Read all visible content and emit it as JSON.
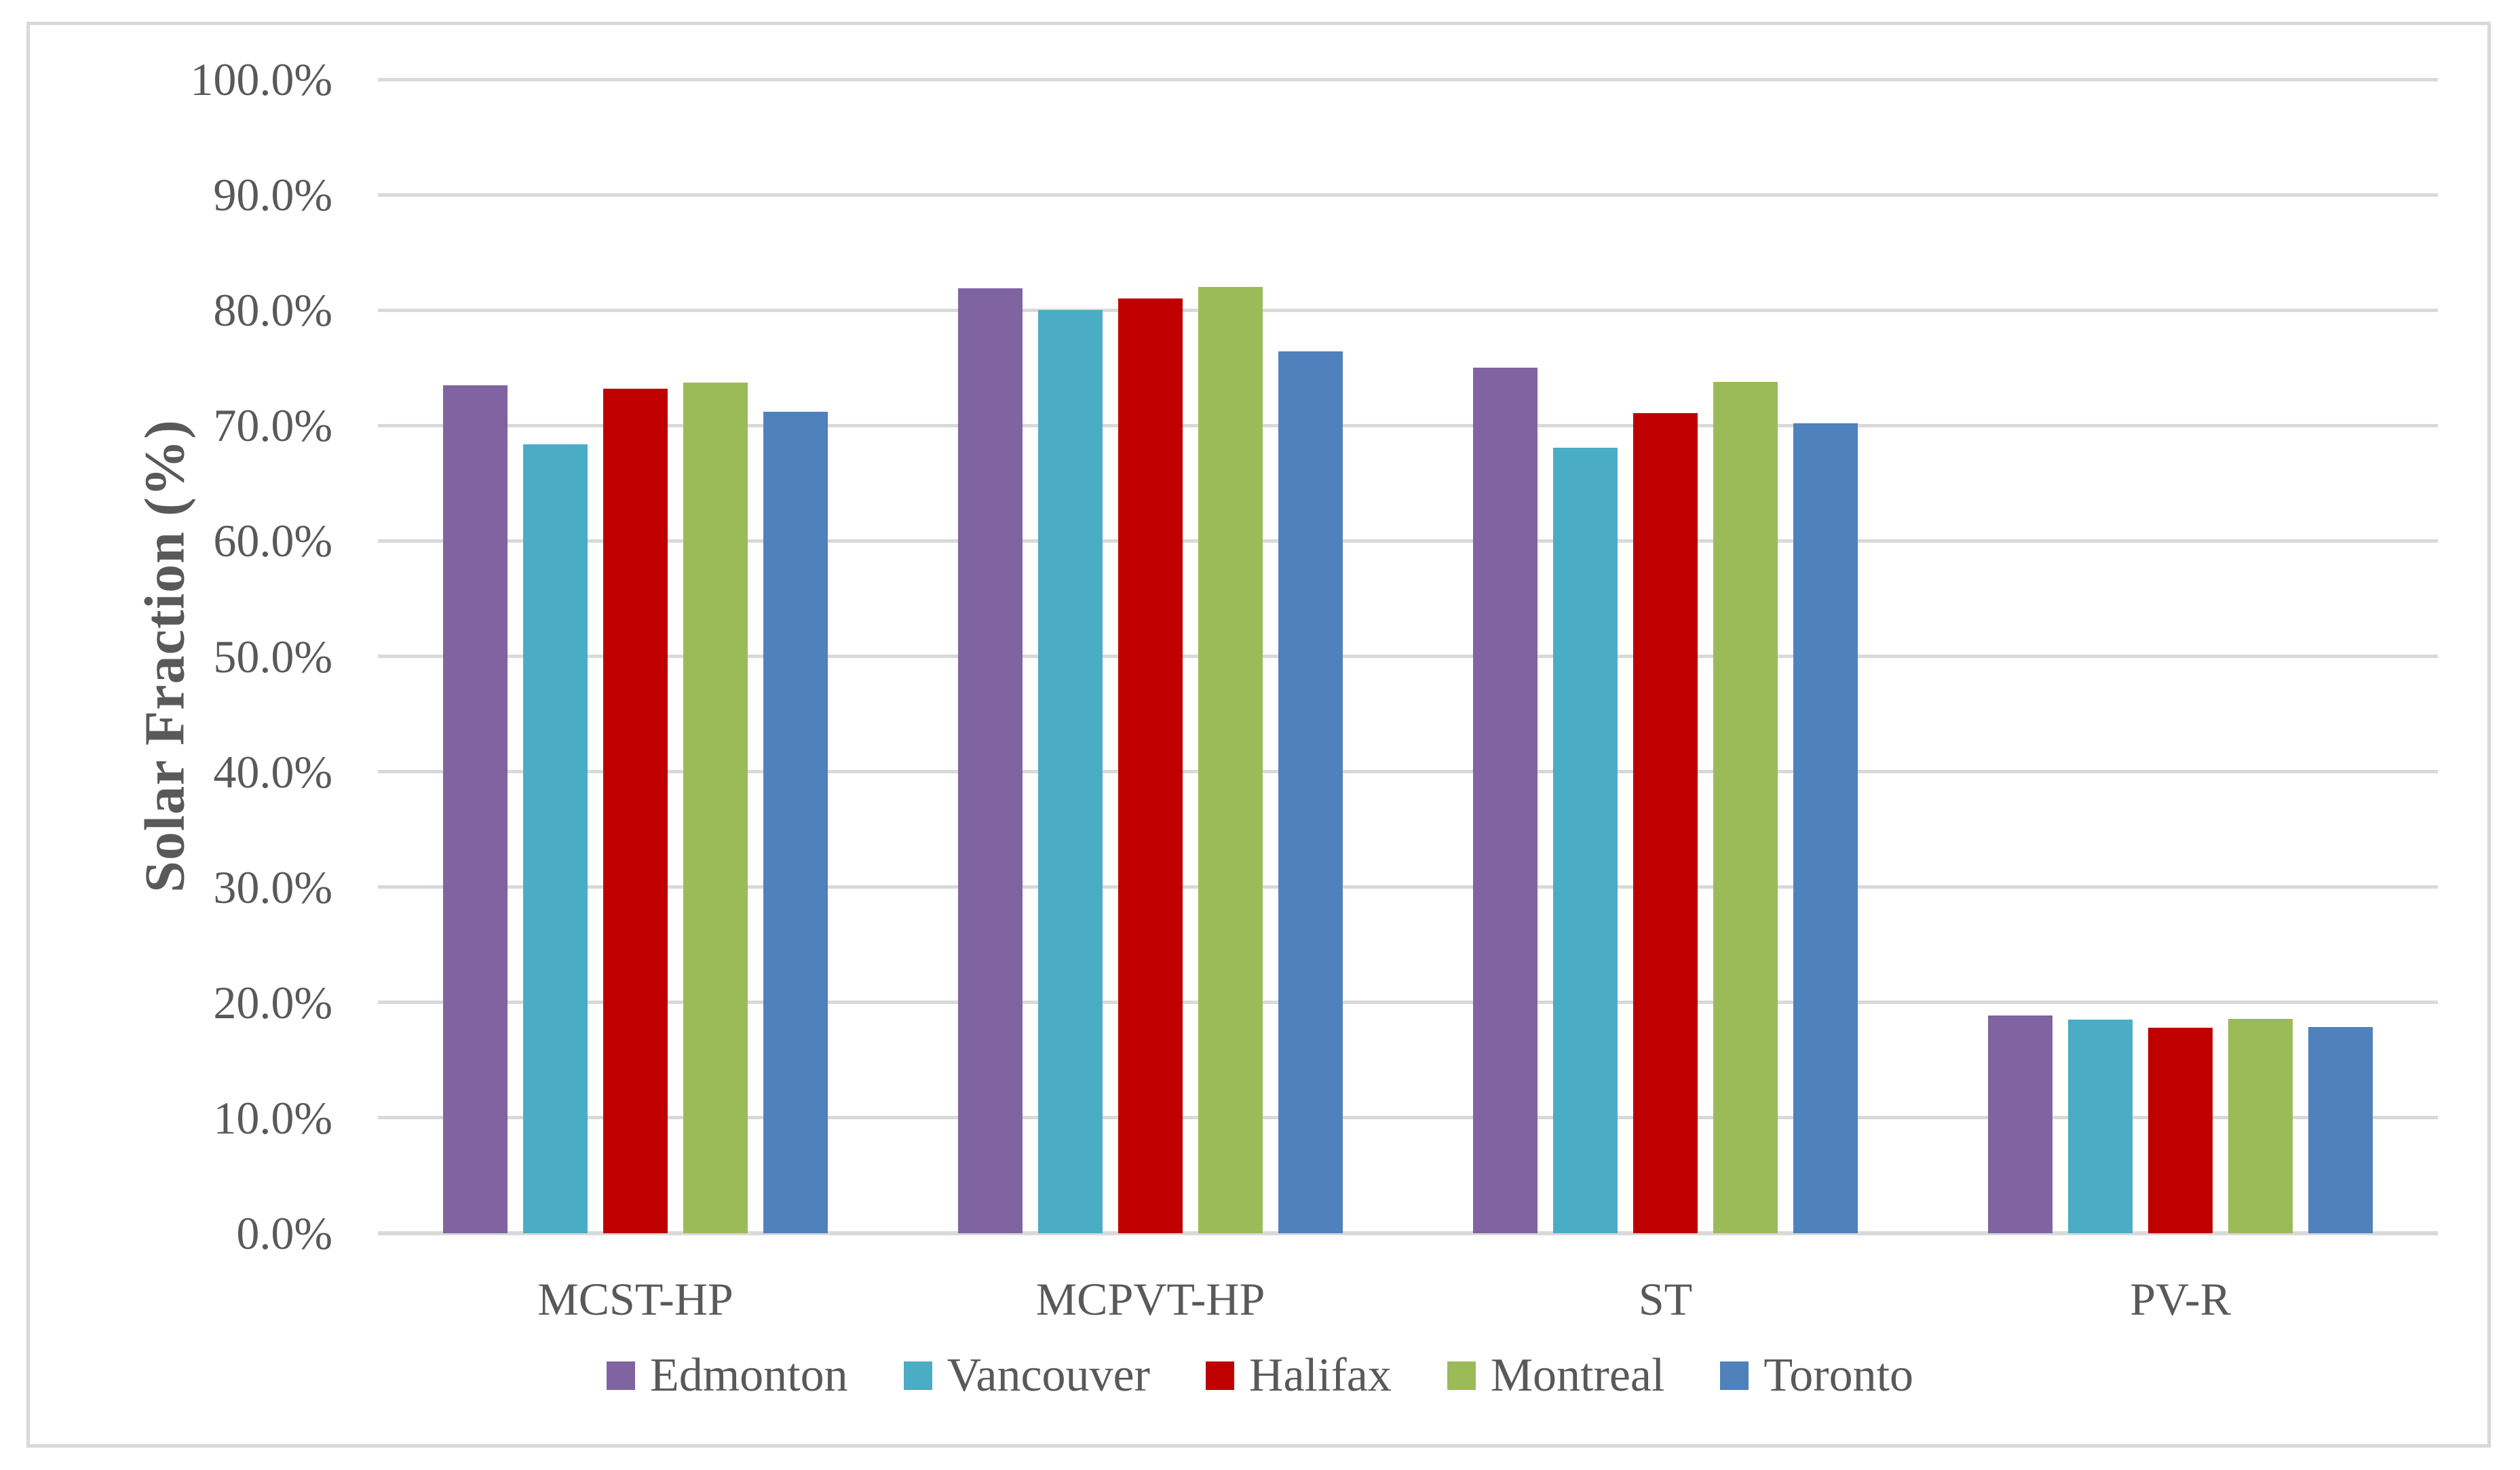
{
  "chart_data": {
    "type": "bar",
    "title": "",
    "xlabel": "",
    "ylabel": "Solar Fraction (%)",
    "categories": [
      "MCST-HP",
      "MCPVT-HP",
      "ST",
      "PV-R"
    ],
    "series": [
      {
        "name": "Edmonton",
        "color": "#8064A2",
        "values": [
          73.5,
          81.9,
          75.0,
          18.9
        ]
      },
      {
        "name": "Vancouver",
        "color": "#4BACC6",
        "values": [
          68.4,
          80.0,
          68.1,
          18.5
        ]
      },
      {
        "name": "Halifax",
        "color": "#C00000",
        "values": [
          73.2,
          81.0,
          71.1,
          17.8
        ]
      },
      {
        "name": "Montreal",
        "color": "#9BBB59",
        "values": [
          73.7,
          82.0,
          73.8,
          18.6
        ]
      },
      {
        "name": "Toronto",
        "color": "#4F81BD",
        "values": [
          71.2,
          76.4,
          70.2,
          17.9
        ]
      }
    ],
    "ylim": [
      0,
      100
    ],
    "ytick_step": 10,
    "ytick_labels": [
      "0.0%",
      "10.0%",
      "20.0%",
      "30.0%",
      "40.0%",
      "50.0%",
      "60.0%",
      "70.0%",
      "80.0%",
      "90.0%",
      "100.0%"
    ],
    "grid": "horizontal-on",
    "legend_position": "bottom",
    "colors": {
      "gridline": "#D9D9D9",
      "chart_border": "#D9D9D9",
      "text": "#595959"
    }
  }
}
